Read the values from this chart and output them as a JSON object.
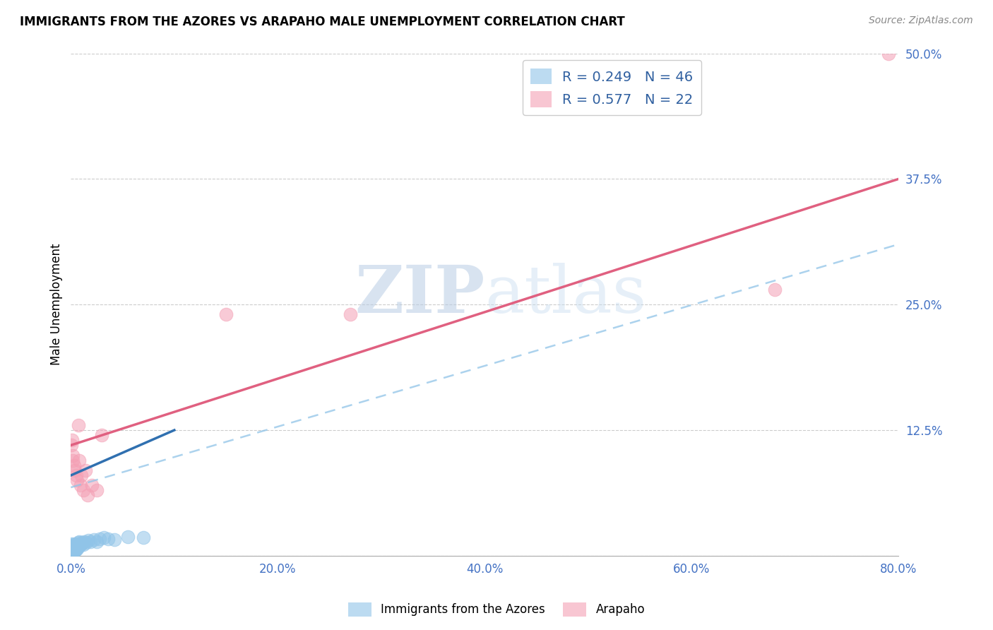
{
  "title": "IMMIGRANTS FROM THE AZORES VS ARAPAHO MALE UNEMPLOYMENT CORRELATION CHART",
  "source": "Source: ZipAtlas.com",
  "ylabel_label": "Male Unemployment",
  "xlim": [
    0.0,
    0.8
  ],
  "ylim": [
    0.0,
    0.5
  ],
  "xticks": [
    0.0,
    0.2,
    0.4,
    0.6,
    0.8
  ],
  "yticks": [
    0.0,
    0.125,
    0.25,
    0.375,
    0.5
  ],
  "xticklabels": [
    "0.0%",
    "20.0%",
    "40.0%",
    "60.0%",
    "80.0%"
  ],
  "yticklabels": [
    "",
    "12.5%",
    "25.0%",
    "37.5%",
    "50.0%"
  ],
  "legend_r1": "R = 0.249",
  "legend_n1": "N = 46",
  "legend_r2": "R = 0.577",
  "legend_n2": "N = 22",
  "color_blue": "#90c4e8",
  "color_pink": "#f4a0b5",
  "color_line_blue": "#3070b0",
  "color_line_pink": "#e06080",
  "color_dash_blue": "#90c4e8",
  "watermark_zip": "ZIP",
  "watermark_atlas": "atlas",
  "azores_x": [
    0.0005,
    0.001,
    0.001,
    0.0015,
    0.0015,
    0.002,
    0.002,
    0.002,
    0.0025,
    0.0025,
    0.003,
    0.003,
    0.003,
    0.003,
    0.0035,
    0.0035,
    0.004,
    0.004,
    0.004,
    0.0045,
    0.005,
    0.005,
    0.005,
    0.0055,
    0.006,
    0.006,
    0.007,
    0.007,
    0.008,
    0.008,
    0.009,
    0.01,
    0.011,
    0.012,
    0.013,
    0.015,
    0.017,
    0.019,
    0.022,
    0.025,
    0.028,
    0.032,
    0.036,
    0.042,
    0.055,
    0.07
  ],
  "azores_y": [
    0.005,
    0.01,
    0.012,
    0.006,
    0.009,
    0.007,
    0.008,
    0.011,
    0.006,
    0.01,
    0.005,
    0.007,
    0.009,
    0.011,
    0.006,
    0.008,
    0.005,
    0.007,
    0.01,
    0.007,
    0.006,
    0.008,
    0.011,
    0.009,
    0.007,
    0.012,
    0.009,
    0.013,
    0.01,
    0.014,
    0.011,
    0.012,
    0.013,
    0.011,
    0.014,
    0.013,
    0.015,
    0.014,
    0.016,
    0.014,
    0.017,
    0.018,
    0.017,
    0.016,
    0.019,
    0.018
  ],
  "arapaho_x": [
    0.0005,
    0.001,
    0.0015,
    0.002,
    0.003,
    0.004,
    0.005,
    0.006,
    0.007,
    0.008,
    0.009,
    0.01,
    0.012,
    0.014,
    0.016,
    0.02,
    0.025,
    0.03,
    0.15,
    0.27,
    0.68,
    0.79
  ],
  "arapaho_y": [
    0.11,
    0.115,
    0.095,
    0.1,
    0.09,
    0.085,
    0.08,
    0.075,
    0.13,
    0.095,
    0.07,
    0.08,
    0.065,
    0.085,
    0.06,
    0.07,
    0.065,
    0.12,
    0.24,
    0.24,
    0.265,
    0.5
  ],
  "pink_line_x0": 0.0,
  "pink_line_y0": 0.11,
  "pink_line_x1": 0.8,
  "pink_line_y1": 0.375,
  "dash_line_x0": 0.0,
  "dash_line_y0": 0.068,
  "dash_line_x1": 0.8,
  "dash_line_y1": 0.31,
  "blue_line_x0": 0.0,
  "blue_line_y0": 0.08,
  "blue_line_x1": 0.1,
  "blue_line_y1": 0.125
}
